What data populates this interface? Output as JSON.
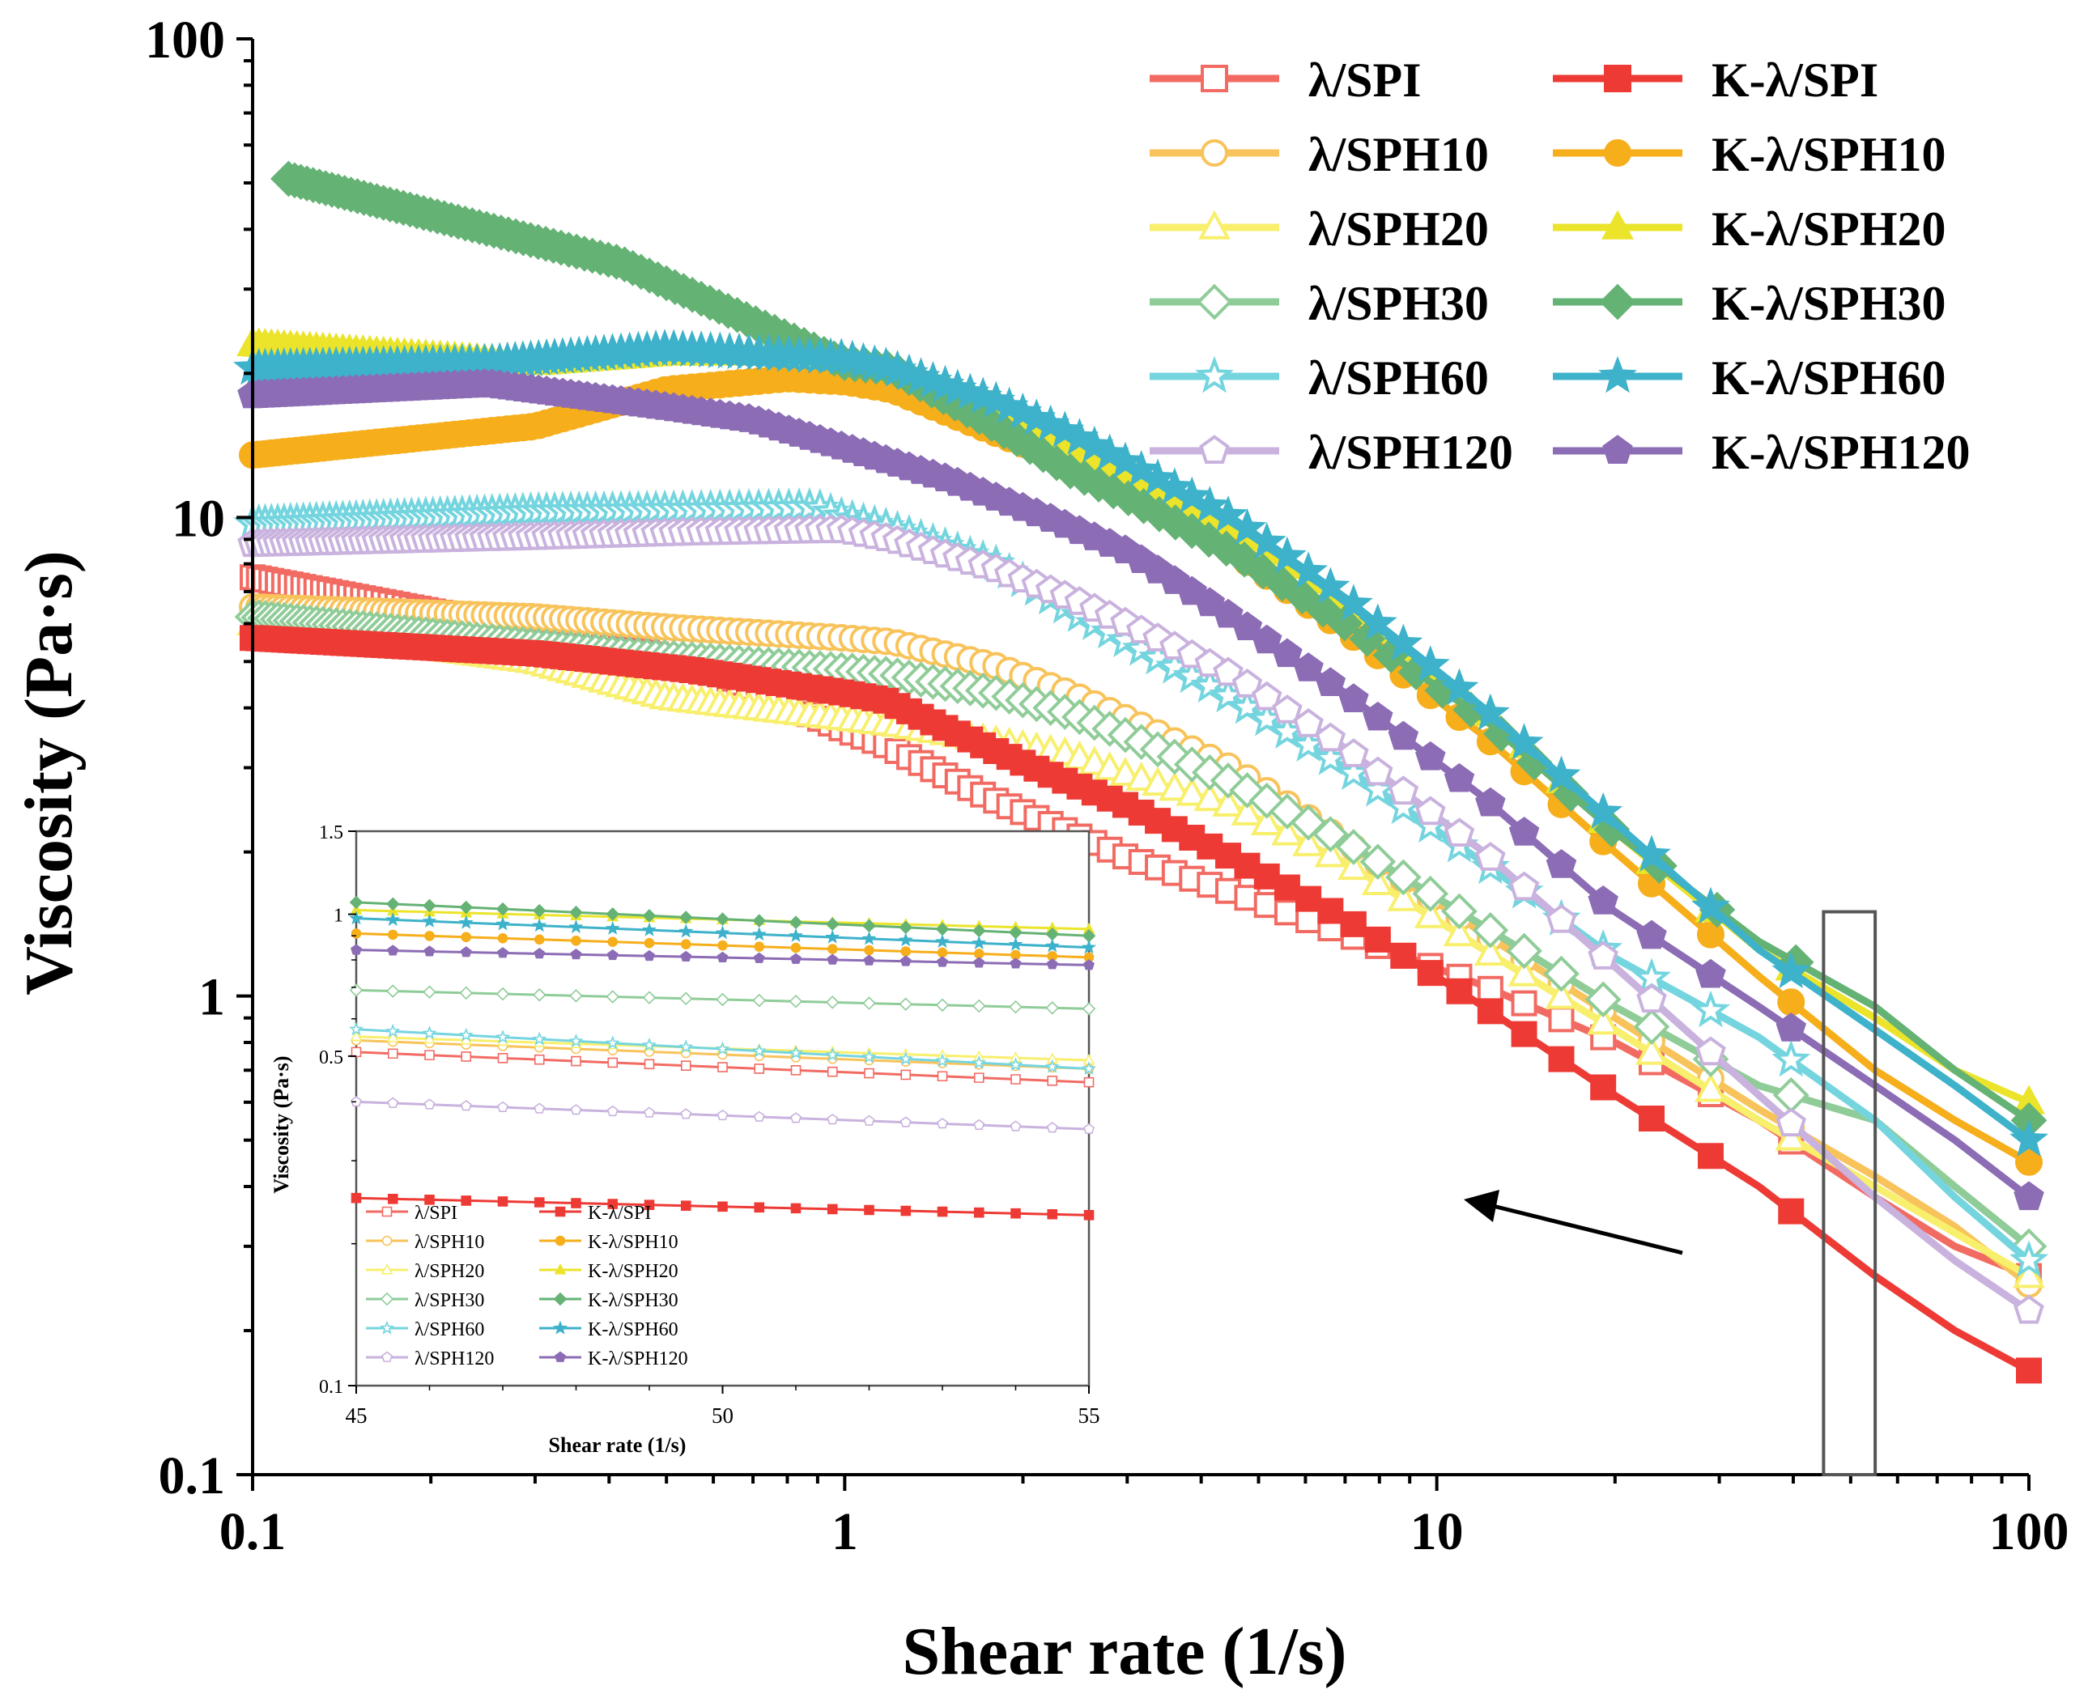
{
  "chart_data": [
    {
      "type": "line",
      "title": "",
      "xlabel": "Shear rate (1/s)",
      "ylabel": "Viscosity (Pa·s)",
      "xscale": "log",
      "yscale": "log",
      "xlim": [
        0.1,
        100
      ],
      "ylim": [
        0.1,
        100
      ],
      "x_ticks": [
        "0.1",
        "1",
        "10",
        "100"
      ],
      "y_ticks": [
        "0.1",
        "1",
        "10",
        "100"
      ],
      "legend_position": "top-right",
      "series": [
        {
          "name": "λ/SPI",
          "color": "#f26b63",
          "marker": "square",
          "filled": false,
          "x": [
            0.1,
            0.3,
            0.55,
            1.0,
            1.17,
            1.75,
            2.3,
            3.0,
            4.5,
            7.0,
            12.0,
            20.0,
            35.0,
            55.0,
            75.0,
            100.0
          ],
          "y": [
            7.5,
            5.8,
            5.0,
            3.6,
            3.35,
            2.6,
            2.25,
            1.95,
            1.65,
            1.35,
            1.05,
            0.8,
            0.55,
            0.38,
            0.3,
            0.26
          ]
        },
        {
          "name": "K-λ/SPI",
          "color": "#ee3a35",
          "marker": "square",
          "filled": true,
          "x": [
            0.1,
            0.3,
            0.55,
            1.0,
            1.17,
            1.75,
            2.3,
            3.0,
            4.5,
            7.0,
            12.0,
            20.0,
            35.0,
            55.0,
            75.0,
            100.0
          ],
          "y": [
            5.6,
            5.2,
            4.8,
            4.3,
            4.15,
            3.3,
            2.85,
            2.5,
            1.95,
            1.45,
            0.95,
            0.62,
            0.4,
            0.26,
            0.2,
            0.165
          ]
        },
        {
          "name": "λ/SPH10",
          "color": "#f8c35a",
          "marker": "circle",
          "filled": false,
          "x": [
            0.1,
            0.3,
            0.5,
            1.0,
            1.2,
            1.8,
            2.4,
            3.0,
            4.5,
            7.0,
            12.0,
            20.0,
            35.0,
            55.0,
            75.0,
            100.0
          ],
          "y": [
            6.5,
            6.2,
            5.9,
            5.6,
            5.5,
            4.9,
            4.3,
            3.8,
            3.0,
            2.1,
            1.35,
            0.9,
            0.58,
            0.42,
            0.33,
            0.25
          ]
        },
        {
          "name": "K-λ/SPH10",
          "color": "#f6ae1b",
          "marker": "circle",
          "filled": true,
          "x": [
            0.1,
            0.3,
            0.5,
            0.8,
            1.0,
            1.2,
            1.8,
            2.4,
            3.0,
            4.5,
            7.0,
            12.0,
            20.0,
            35.0,
            55.0,
            75.0,
            100.0
          ],
          "y": [
            13.5,
            15.5,
            18.5,
            19.5,
            19.2,
            18.5,
            15.0,
            13.0,
            11.5,
            8.5,
            5.8,
            3.5,
            2.0,
            1.1,
            0.7,
            0.55,
            0.45
          ]
        },
        {
          "name": "λ/SPH20",
          "color": "#f8ef6c",
          "marker": "triangle",
          "filled": false,
          "x": [
            0.1,
            0.3,
            0.5,
            1.0,
            1.2,
            1.8,
            2.4,
            3.0,
            4.5,
            7.0,
            12.0,
            20.0,
            35.0,
            55.0,
            75.0,
            100.0
          ],
          "y": [
            6.0,
            5.0,
            4.2,
            3.8,
            3.7,
            3.4,
            3.2,
            2.9,
            2.5,
            1.9,
            1.25,
            0.85,
            0.55,
            0.4,
            0.32,
            0.26
          ]
        },
        {
          "name": "K-λ/SPH20",
          "color": "#ebe42a",
          "marker": "triangle",
          "filled": true,
          "x": [
            0.1,
            0.3,
            0.5,
            0.8,
            1.0,
            1.2,
            1.8,
            2.4,
            3.0,
            4.5,
            7.0,
            12.0,
            20.0,
            35.0,
            55.0,
            75.0,
            100.0
          ],
          "y": [
            23.0,
            21.0,
            22.0,
            22.0,
            21.5,
            20.5,
            17.5,
            14.0,
            12.0,
            9.5,
            6.5,
            4.0,
            2.2,
            1.25,
            0.9,
            0.7,
            0.6
          ]
        },
        {
          "name": "λ/SPH30",
          "color": "#8fcc98",
          "marker": "diamond",
          "filled": false,
          "x": [
            0.1,
            0.3,
            0.5,
            1.0,
            1.2,
            1.8,
            2.4,
            3.0,
            4.5,
            7.0,
            12.0,
            20.0,
            35.0,
            55.0,
            75.0,
            100.0
          ],
          "y": [
            6.2,
            5.4,
            5.1,
            4.8,
            4.7,
            4.3,
            3.9,
            3.5,
            2.8,
            2.1,
            1.4,
            0.95,
            0.65,
            0.55,
            0.4,
            0.3
          ]
        },
        {
          "name": "K-λ/SPH30",
          "color": "#64b274",
          "marker": "diamond",
          "filled": true,
          "x": [
            0.115,
            0.42,
            1.0,
            1.2,
            1.8,
            2.4,
            3.0,
            4.5,
            7.0,
            12.0,
            20.0,
            35.0,
            55.0,
            75.0,
            100.0
          ],
          "y": [
            51.0,
            34.0,
            21.0,
            20.5,
            15.5,
            12.5,
            11.0,
            8.5,
            6.0,
            3.8,
            2.2,
            1.3,
            0.95,
            0.7,
            0.55
          ]
        },
        {
          "name": "λ/SPH60",
          "color": "#74d5df",
          "marker": "star",
          "filled": false,
          "x": [
            0.1,
            0.3,
            0.55,
            0.9,
            1.0,
            1.2,
            1.8,
            2.4,
            3.0,
            4.5,
            7.0,
            12.0,
            20.0,
            35.0,
            55.0,
            75.0,
            100.0
          ],
          "y": [
            9.7,
            10.3,
            10.4,
            10.5,
            10.0,
            9.5,
            8.0,
            6.4,
            5.5,
            4.2,
            3.0,
            1.9,
            1.2,
            0.82,
            0.55,
            0.38,
            0.28
          ]
        },
        {
          "name": "K-λ/SPH60",
          "color": "#3db2ca",
          "marker": "star",
          "filled": true,
          "x": [
            0.1,
            0.25,
            0.5,
            1.0,
            1.2,
            1.8,
            2.4,
            3.0,
            4.5,
            7.0,
            12.0,
            20.0,
            35.0,
            55.0,
            75.0,
            100.0
          ],
          "y": [
            20.5,
            21.0,
            22.5,
            21.5,
            20.5,
            17.5,
            15.0,
            13.0,
            10.0,
            6.8,
            4.0,
            2.3,
            1.25,
            0.85,
            0.65,
            0.5
          ]
        },
        {
          "name": "λ/SPH120",
          "color": "#c9b2de",
          "marker": "pentagon",
          "filled": false,
          "x": [
            0.1,
            0.3,
            0.55,
            0.9,
            1.0,
            1.2,
            1.8,
            2.4,
            3.0,
            4.5,
            7.0,
            12.0,
            20.0,
            35.0,
            55.0,
            75.0,
            100.0
          ],
          "y": [
            8.8,
            9.1,
            9.3,
            9.4,
            9.4,
            9.0,
            7.8,
            6.8,
            6.0,
            4.7,
            3.3,
            2.0,
            1.15,
            0.62,
            0.38,
            0.28,
            0.22
          ]
        },
        {
          "name": "K-λ/SPH120",
          "color": "#8c6cb5",
          "marker": "pentagon",
          "filled": true,
          "x": [
            0.1,
            0.25,
            0.5,
            0.7,
            1.0,
            1.5,
            2.2,
            3.0,
            4.5,
            7.0,
            12.0,
            20.0,
            35.0,
            55.0,
            75.0,
            100.0
          ],
          "y": [
            18.0,
            19.0,
            17.0,
            16.0,
            14.0,
            12.0,
            10.0,
            8.5,
            6.2,
            4.3,
            2.6,
            1.5,
            0.95,
            0.65,
            0.5,
            0.38
          ]
        }
      ]
    },
    {
      "type": "line",
      "title": "",
      "xlabel": "Shear rate (1/s)",
      "ylabel": "Viscosity (Pa·s)",
      "xscale": "linear",
      "yscale": "log",
      "xlim": [
        45,
        55
      ],
      "ylim": [
        0.1,
        1.5
      ],
      "x_ticks": [
        "45",
        "50",
        "55"
      ],
      "y_ticks": [
        "0.1",
        "0.5",
        "1",
        "1.5"
      ],
      "legend_position": "bottom-left",
      "series": [
        {
          "name": "λ/SPI",
          "start": 0.51,
          "end": 0.44
        },
        {
          "name": "K-λ/SPI",
          "start": 0.25,
          "end": 0.23
        },
        {
          "name": "λ/SPH10",
          "start": 0.54,
          "end": 0.47
        },
        {
          "name": "K-λ/SPH10",
          "start": 0.91,
          "end": 0.81
        },
        {
          "name": "λ/SPH20",
          "start": 0.55,
          "end": 0.49
        },
        {
          "name": "K-λ/SPH20",
          "start": 1.02,
          "end": 0.93
        },
        {
          "name": "λ/SPH30",
          "start": 0.69,
          "end": 0.63
        },
        {
          "name": "K-λ/SPH30",
          "start": 1.06,
          "end": 0.9
        },
        {
          "name": "λ/SPH60",
          "start": 0.57,
          "end": 0.47
        },
        {
          "name": "K-λ/SPH60",
          "start": 0.98,
          "end": 0.85
        },
        {
          "name": "λ/SPH120",
          "start": 0.4,
          "end": 0.35
        },
        {
          "name": "K-λ/SPH120",
          "start": 0.84,
          "end": 0.78
        }
      ]
    }
  ]
}
